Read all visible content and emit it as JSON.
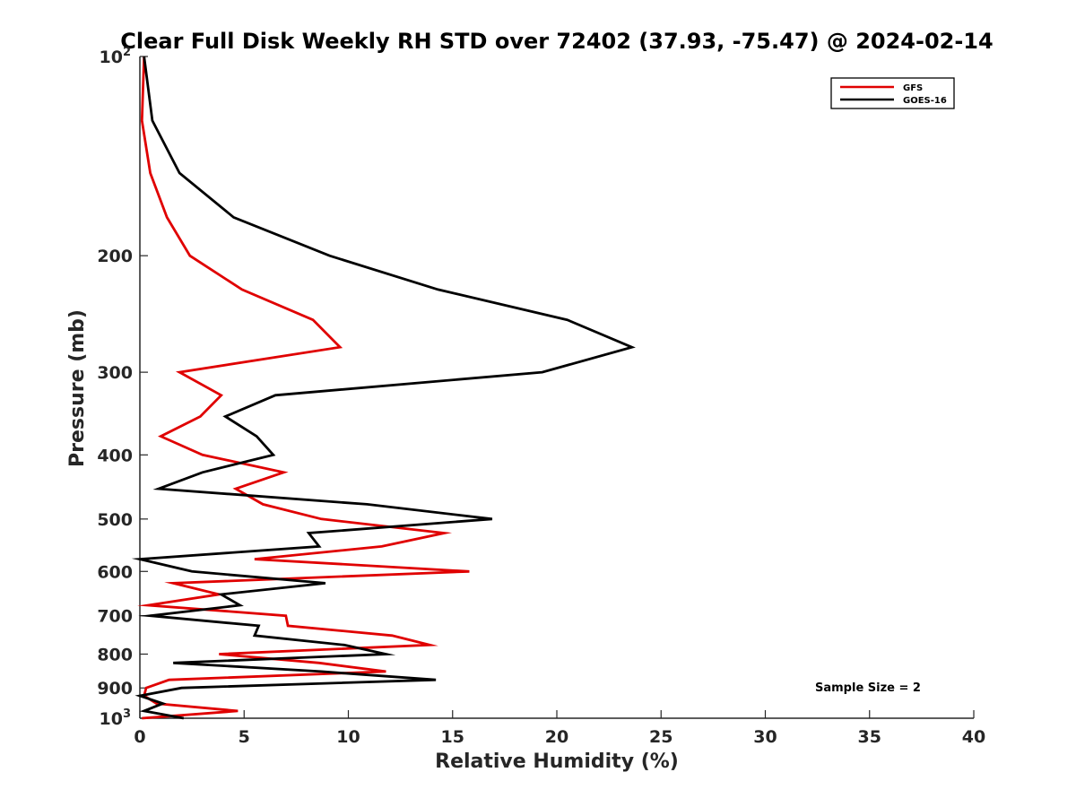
{
  "chart_data": {
    "type": "line",
    "title": "Clear Full Disk Weekly RH STD over 72402 (37.93, -75.47) @ 2024-02-14",
    "xlabel": "Relative Humidity (%)",
    "ylabel": "Pressure (mb)",
    "xlim": [
      0,
      40
    ],
    "ylim": [
      100,
      1000
    ],
    "y_scale": "log",
    "y_reversed": true,
    "grid": false,
    "legend_position": "top-right",
    "x_ticks": [
      0,
      5,
      10,
      15,
      20,
      25,
      30,
      35,
      40
    ],
    "x_tick_labels": [
      "0",
      "5",
      "10",
      "15",
      "20",
      "25",
      "30",
      "35",
      "40"
    ],
    "y_ticks": [
      100,
      200,
      300,
      400,
      500,
      600,
      700,
      800,
      900,
      1000
    ],
    "y_tick_labels": [
      "10^2",
      "200",
      "300",
      "400",
      "500",
      "600",
      "700",
      "800",
      "900",
      "10^3"
    ],
    "annotation": "Sample Size = 2",
    "series": [
      {
        "name": "GFS",
        "color": "#e00000",
        "points": [
          [
            0.2,
            100
          ],
          [
            0.1,
            125
          ],
          [
            0.5,
            150
          ],
          [
            1.3,
            175
          ],
          [
            2.4,
            200
          ],
          [
            4.9,
            225
          ],
          [
            8.3,
            250
          ],
          [
            9.6,
            275
          ],
          [
            1.9,
            300
          ],
          [
            3.9,
            325
          ],
          [
            2.9,
            350
          ],
          [
            1.0,
            375
          ],
          [
            3.0,
            400
          ],
          [
            6.9,
            425
          ],
          [
            4.6,
            450
          ],
          [
            5.9,
            475
          ],
          [
            8.7,
            500
          ],
          [
            14.6,
            525
          ],
          [
            11.6,
            550
          ],
          [
            5.5,
            575
          ],
          [
            15.8,
            600
          ],
          [
            1.6,
            625
          ],
          [
            3.8,
            650
          ],
          [
            0.4,
            675
          ],
          [
            7.0,
            700
          ],
          [
            7.1,
            725
          ],
          [
            12.1,
            750
          ],
          [
            13.9,
            775
          ],
          [
            3.8,
            800
          ],
          [
            8.6,
            825
          ],
          [
            11.8,
            850
          ],
          [
            1.4,
            875
          ],
          [
            0.3,
            900
          ],
          [
            0.2,
            925
          ],
          [
            0.8,
            950
          ],
          [
            4.7,
            975
          ],
          [
            0.1,
            1000
          ]
        ]
      },
      {
        "name": "GOES-16",
        "color": "#000000",
        "points": [
          [
            0.2,
            100
          ],
          [
            0.6,
            125
          ],
          [
            1.9,
            150
          ],
          [
            4.5,
            175
          ],
          [
            9.1,
            200
          ],
          [
            14.3,
            225
          ],
          [
            20.5,
            250
          ],
          [
            23.6,
            275
          ],
          [
            19.3,
            300
          ],
          [
            6.5,
            325
          ],
          [
            4.1,
            350
          ],
          [
            5.6,
            375
          ],
          [
            6.4,
            400
          ],
          [
            3.0,
            425
          ],
          [
            0.9,
            450
          ],
          [
            10.9,
            475
          ],
          [
            16.9,
            500
          ],
          [
            8.1,
            525
          ],
          [
            8.6,
            550
          ],
          [
            0.0,
            575
          ],
          [
            2.5,
            600
          ],
          [
            8.9,
            625
          ],
          [
            3.9,
            650
          ],
          [
            4.8,
            675
          ],
          [
            0.5,
            700
          ],
          [
            5.7,
            725
          ],
          [
            5.5,
            750
          ],
          [
            9.8,
            775
          ],
          [
            11.8,
            800
          ],
          [
            1.6,
            825
          ],
          [
            8.7,
            850
          ],
          [
            14.2,
            875
          ],
          [
            2.0,
            900
          ],
          [
            0.0,
            925
          ],
          [
            1.1,
            950
          ],
          [
            0.2,
            975
          ],
          [
            2.1,
            1000
          ]
        ]
      }
    ]
  }
}
